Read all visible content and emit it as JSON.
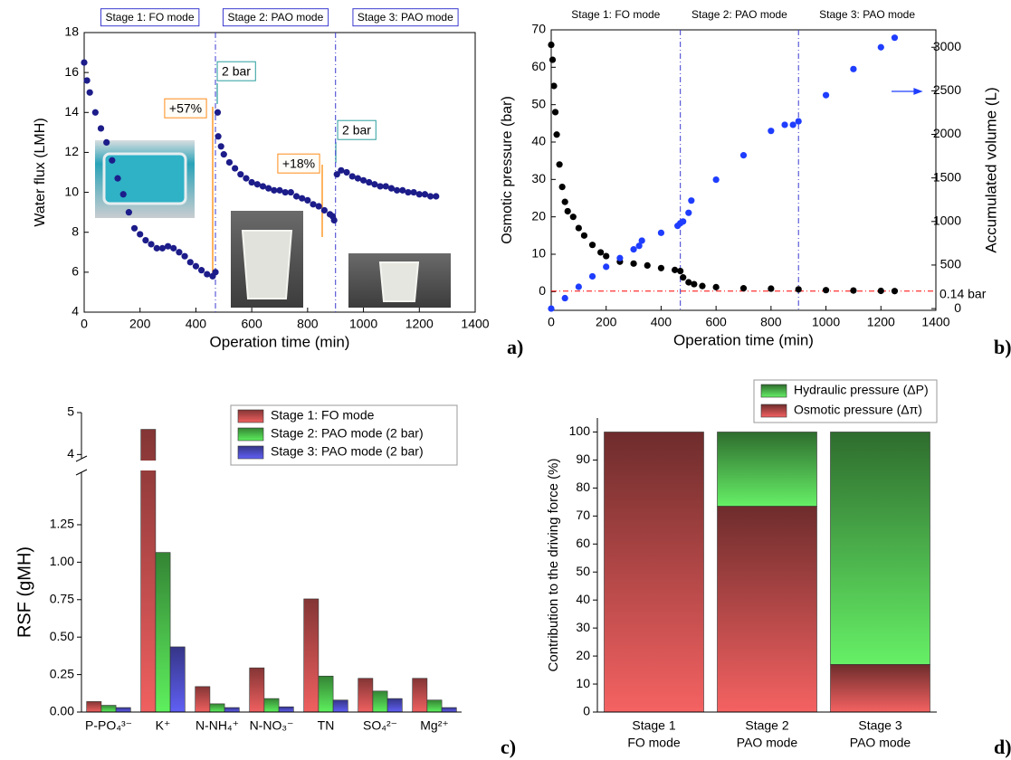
{
  "chart_data": [
    {
      "type": "scatter",
      "panel_label": "a)",
      "xlabel": "Operation time (min)",
      "ylabel": "Water flux (LMH)",
      "xlim": [
        0,
        1400
      ],
      "xticks": [
        0,
        200,
        400,
        600,
        800,
        1000,
        1200,
        1400
      ],
      "ylim": [
        4,
        18
      ],
      "yticks": [
        4,
        6,
        8,
        10,
        12,
        14,
        16,
        18
      ],
      "stages": [
        "Stage 1: FO mode",
        "Stage 2: PAO mode",
        "Stage 3: PAO mode"
      ],
      "stage_boundaries": [
        470,
        900
      ],
      "stage_boxes": true,
      "annotations": [
        "+57%",
        "2 bar",
        "+18%",
        "2 bar"
      ],
      "series": [
        {
          "color": "#1c1c8a",
          "x": [
            0,
            10,
            20,
            40,
            60,
            80,
            100,
            120,
            140,
            160,
            180,
            200,
            220,
            240,
            260,
            280,
            300,
            320,
            340,
            360,
            380,
            400,
            420,
            440,
            460,
            470,
            478,
            480,
            490,
            500,
            520,
            540,
            560,
            580,
            600,
            620,
            640,
            660,
            680,
            700,
            720,
            740,
            760,
            780,
            800,
            820,
            840,
            860,
            880,
            890,
            895,
            905,
            920,
            940,
            960,
            980,
            1000,
            1020,
            1040,
            1060,
            1080,
            1100,
            1120,
            1140,
            1160,
            1180,
            1200,
            1220,
            1240,
            1260
          ],
          "values": [
            16.5,
            15.6,
            15.0,
            14.0,
            13.2,
            12.5,
            11.6,
            10.7,
            9.9,
            9.0,
            8.2,
            7.9,
            7.6,
            7.4,
            7.2,
            7.2,
            7.3,
            7.2,
            7.0,
            6.8,
            6.5,
            6.3,
            6.1,
            5.9,
            5.8,
            6.0,
            14.0,
            12.8,
            12.3,
            11.9,
            11.5,
            11.2,
            10.9,
            10.7,
            10.5,
            10.4,
            10.3,
            10.2,
            10.1,
            10.1,
            10.0,
            10.0,
            9.8,
            9.7,
            9.6,
            9.4,
            9.3,
            9.1,
            8.9,
            8.8,
            8.6,
            10.9,
            11.1,
            11.0,
            10.8,
            10.7,
            10.6,
            10.5,
            10.4,
            10.3,
            10.3,
            10.2,
            10.1,
            10.1,
            10.0,
            10.0,
            9.9,
            9.9,
            9.8,
            9.8
          ]
        }
      ]
    },
    {
      "type": "scatter",
      "panel_label": "b)",
      "xlabel": "Operation time (min)",
      "ylabel": "Osmotic pressure (bar)",
      "y2label": "Accumulated volume (L)",
      "xlim": [
        0,
        1400
      ],
      "xticks": [
        0,
        200,
        400,
        600,
        800,
        1000,
        1200,
        1400
      ],
      "ylim": [
        -5,
        70
      ],
      "yticks": [
        0,
        10,
        20,
        30,
        40,
        50,
        60,
        70
      ],
      "y2lim": [
        -20,
        3200
      ],
      "y2ticks": [
        0,
        500,
        1000,
        1500,
        2000,
        2500,
        3000
      ],
      "stages": [
        "Stage 1: FO mode",
        "Stage 2: PAO mode",
        "Stage 3: PAO mode"
      ],
      "stage_boundaries": [
        470,
        900
      ],
      "stage_boxes": false,
      "threshold": 0.14,
      "threshold_label": "0.14 bar",
      "threshold_color": "#ff0000",
      "series": [
        {
          "color": "#000000",
          "x": [
            0,
            5,
            10,
            15,
            20,
            30,
            40,
            50,
            60,
            80,
            100,
            120,
            150,
            180,
            200,
            250,
            300,
            350,
            400,
            450,
            470,
            480,
            500,
            520,
            550,
            600,
            700,
            800,
            900,
            1000,
            1100,
            1200,
            1250
          ],
          "values": [
            66,
            62,
            55,
            48,
            42,
            34,
            28,
            24,
            21.5,
            20,
            17,
            15,
            12.5,
            10.5,
            9.5,
            8,
            7.5,
            7,
            6.3,
            5.8,
            5.5,
            3.8,
            2.5,
            2,
            1.5,
            1.2,
            0.9,
            0.8,
            0.6,
            0.4,
            0.3,
            0.2,
            0.15
          ]
        },
        {
          "color": "#1f3dff",
          "axis": "y2",
          "x": [
            0,
            50,
            100,
            150,
            200,
            250,
            300,
            320,
            330,
            400,
            460,
            470,
            480,
            500,
            510,
            600,
            700,
            800,
            850,
            880,
            900,
            1000,
            1100,
            1200,
            1250
          ],
          "values": [
            0,
            120,
            250,
            370,
            480,
            580,
            680,
            720,
            780,
            870,
            950,
            980,
            1000,
            1100,
            1240,
            1480,
            1760,
            2040,
            2110,
            2110,
            2150,
            2450,
            2750,
            3000,
            3110
          ]
        }
      ]
    },
    {
      "type": "bar",
      "panel_label": "c)",
      "ylabel": "RSF (gMH)",
      "categories": [
        "P-PO₄³⁻",
        "K⁺",
        "N-NH₄⁺",
        "N-NO₃⁻",
        "TN",
        "SO₄²⁻",
        "Mg²⁺"
      ],
      "ylim": [
        0,
        5
      ],
      "axis_break": [
        1.6,
        3.9
      ],
      "yticks": [
        {
          "value": 0,
          "label": "0.00"
        },
        0.25,
        {
          "value": 0.5,
          "label": "0.50"
        },
        0.75,
        {
          "value": 1,
          "label": "1.00"
        },
        1.25,
        4,
        5
      ],
      "legend": "upper right",
      "series": [
        {
          "name": "Stage 1: FO mode",
          "color": "#f06060",
          "values": [
            0.07,
            4.6,
            0.17,
            0.295,
            0.755,
            0.225,
            0.225
          ]
        },
        {
          "name": "Stage 2: PAO mode (2 bar)",
          "color": "#5ef05e",
          "values": [
            0.045,
            1.065,
            0.055,
            0.09,
            0.24,
            0.14,
            0.08
          ]
        },
        {
          "name": "Stage 3: PAO mode (2 bar)",
          "color": "#6060f5",
          "values": [
            0.03,
            0.435,
            0.03,
            0.035,
            0.08,
            0.09,
            0.03
          ]
        }
      ]
    },
    {
      "type": "stacked_bar",
      "panel_label": "d)",
      "ylabel": "Contribution to the driving force (%)",
      "categories": [
        [
          "Stage 1",
          "FO mode"
        ],
        [
          "Stage 2",
          "PAO mode"
        ],
        [
          "Stage 3",
          "PAO mode"
        ]
      ],
      "ylim": [
        0,
        105
      ],
      "yticks": [
        0,
        10,
        20,
        30,
        40,
        50,
        60,
        70,
        80,
        90,
        100
      ],
      "legend": "upper right",
      "series": [
        {
          "name": "Osmotic pressure (Δπ)",
          "color": "#f56262",
          "values": [
            100,
            73.5,
            17
          ]
        },
        {
          "name": "Hydraulic pressure (ΔP)",
          "color": "#66f066",
          "values": [
            0,
            26.5,
            83
          ]
        }
      ]
    }
  ]
}
